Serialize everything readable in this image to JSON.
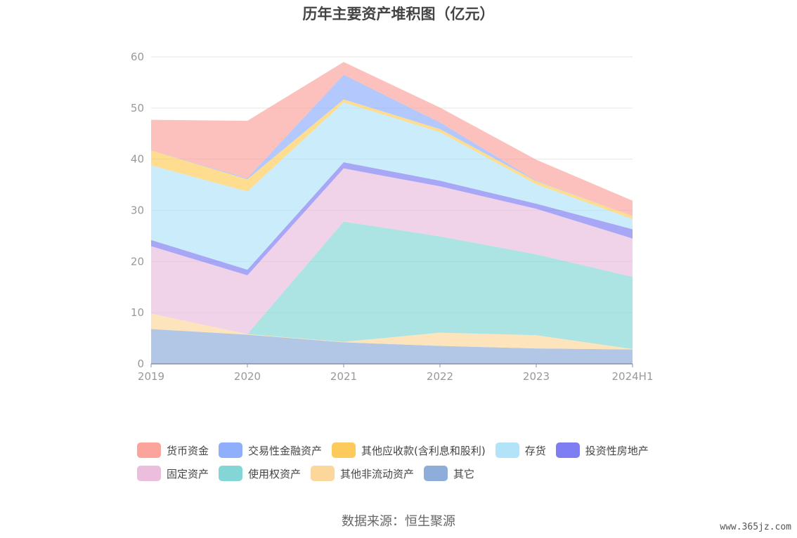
{
  "chart_data": {
    "type": "area",
    "stacked": true,
    "title": "历年主要资产堆积图（亿元）",
    "categories": [
      "2019",
      "2020",
      "2021",
      "2022",
      "2023",
      "2024H1"
    ],
    "ylim": [
      0,
      60
    ],
    "yticks": [
      0,
      10,
      20,
      30,
      40,
      50,
      60
    ],
    "grid": true,
    "legend_position": "bottom",
    "series": [
      {
        "name": "其它",
        "color": "#8eadd9",
        "values": [
          6.8,
          5.7,
          4.2,
          3.5,
          3.0,
          2.8
        ]
      },
      {
        "name": "其他非流动资产",
        "color": "#fcd79c",
        "values": [
          3.0,
          0.1,
          0.1,
          2.6,
          2.6,
          0.1
        ]
      },
      {
        "name": "使用权资产",
        "color": "#84d6d6",
        "values": [
          0,
          0,
          23.5,
          18.8,
          15.8,
          14.1
        ]
      },
      {
        "name": "固定资产",
        "color": "#ebbede",
        "values": [
          13.2,
          11.5,
          10.4,
          9.8,
          8.9,
          7.5
        ]
      },
      {
        "name": "投资性房地产",
        "color": "#7e7ef2",
        "values": [
          1.2,
          1.1,
          1.2,
          1.1,
          1.0,
          1.8
        ]
      },
      {
        "name": "存货",
        "color": "#b3e3f9",
        "values": [
          14.6,
          15.3,
          11.7,
          9.5,
          3.8,
          2.0
        ]
      },
      {
        "name": "其他应收款(含利息和股利)",
        "color": "#fdcb5c",
        "values": [
          2.9,
          2.4,
          0.6,
          0.6,
          0.6,
          0.6
        ]
      },
      {
        "name": "交易性金融资产",
        "color": "#8faefb",
        "values": [
          0,
          0.2,
          4.8,
          1.3,
          0.1,
          0
        ]
      },
      {
        "name": "货币资金",
        "color": "#fba49c",
        "values": [
          6.0,
          11.2,
          2.5,
          2.9,
          4.1,
          3.0
        ]
      }
    ],
    "legend_order": [
      "货币资金",
      "交易性金融资产",
      "其他应收款(含利息和股利)",
      "存货",
      "投资性房地产",
      "固定资产",
      "使用权资产",
      "其他非流动资产",
      "其它"
    ]
  },
  "source_note": "数据来源：恒生聚源",
  "watermark": "www.365jz.com"
}
